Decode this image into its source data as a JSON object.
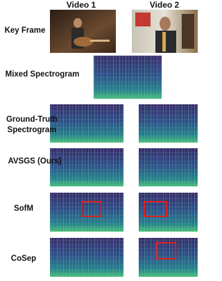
{
  "columns": [
    "Video 1",
    "Video 2"
  ],
  "rows": [
    "Key Frame",
    "Mixed Spectrogram",
    "Ground-Truth Spectrogram",
    "AVSGS (Ours)",
    "SofM",
    "CoSep"
  ]
}
